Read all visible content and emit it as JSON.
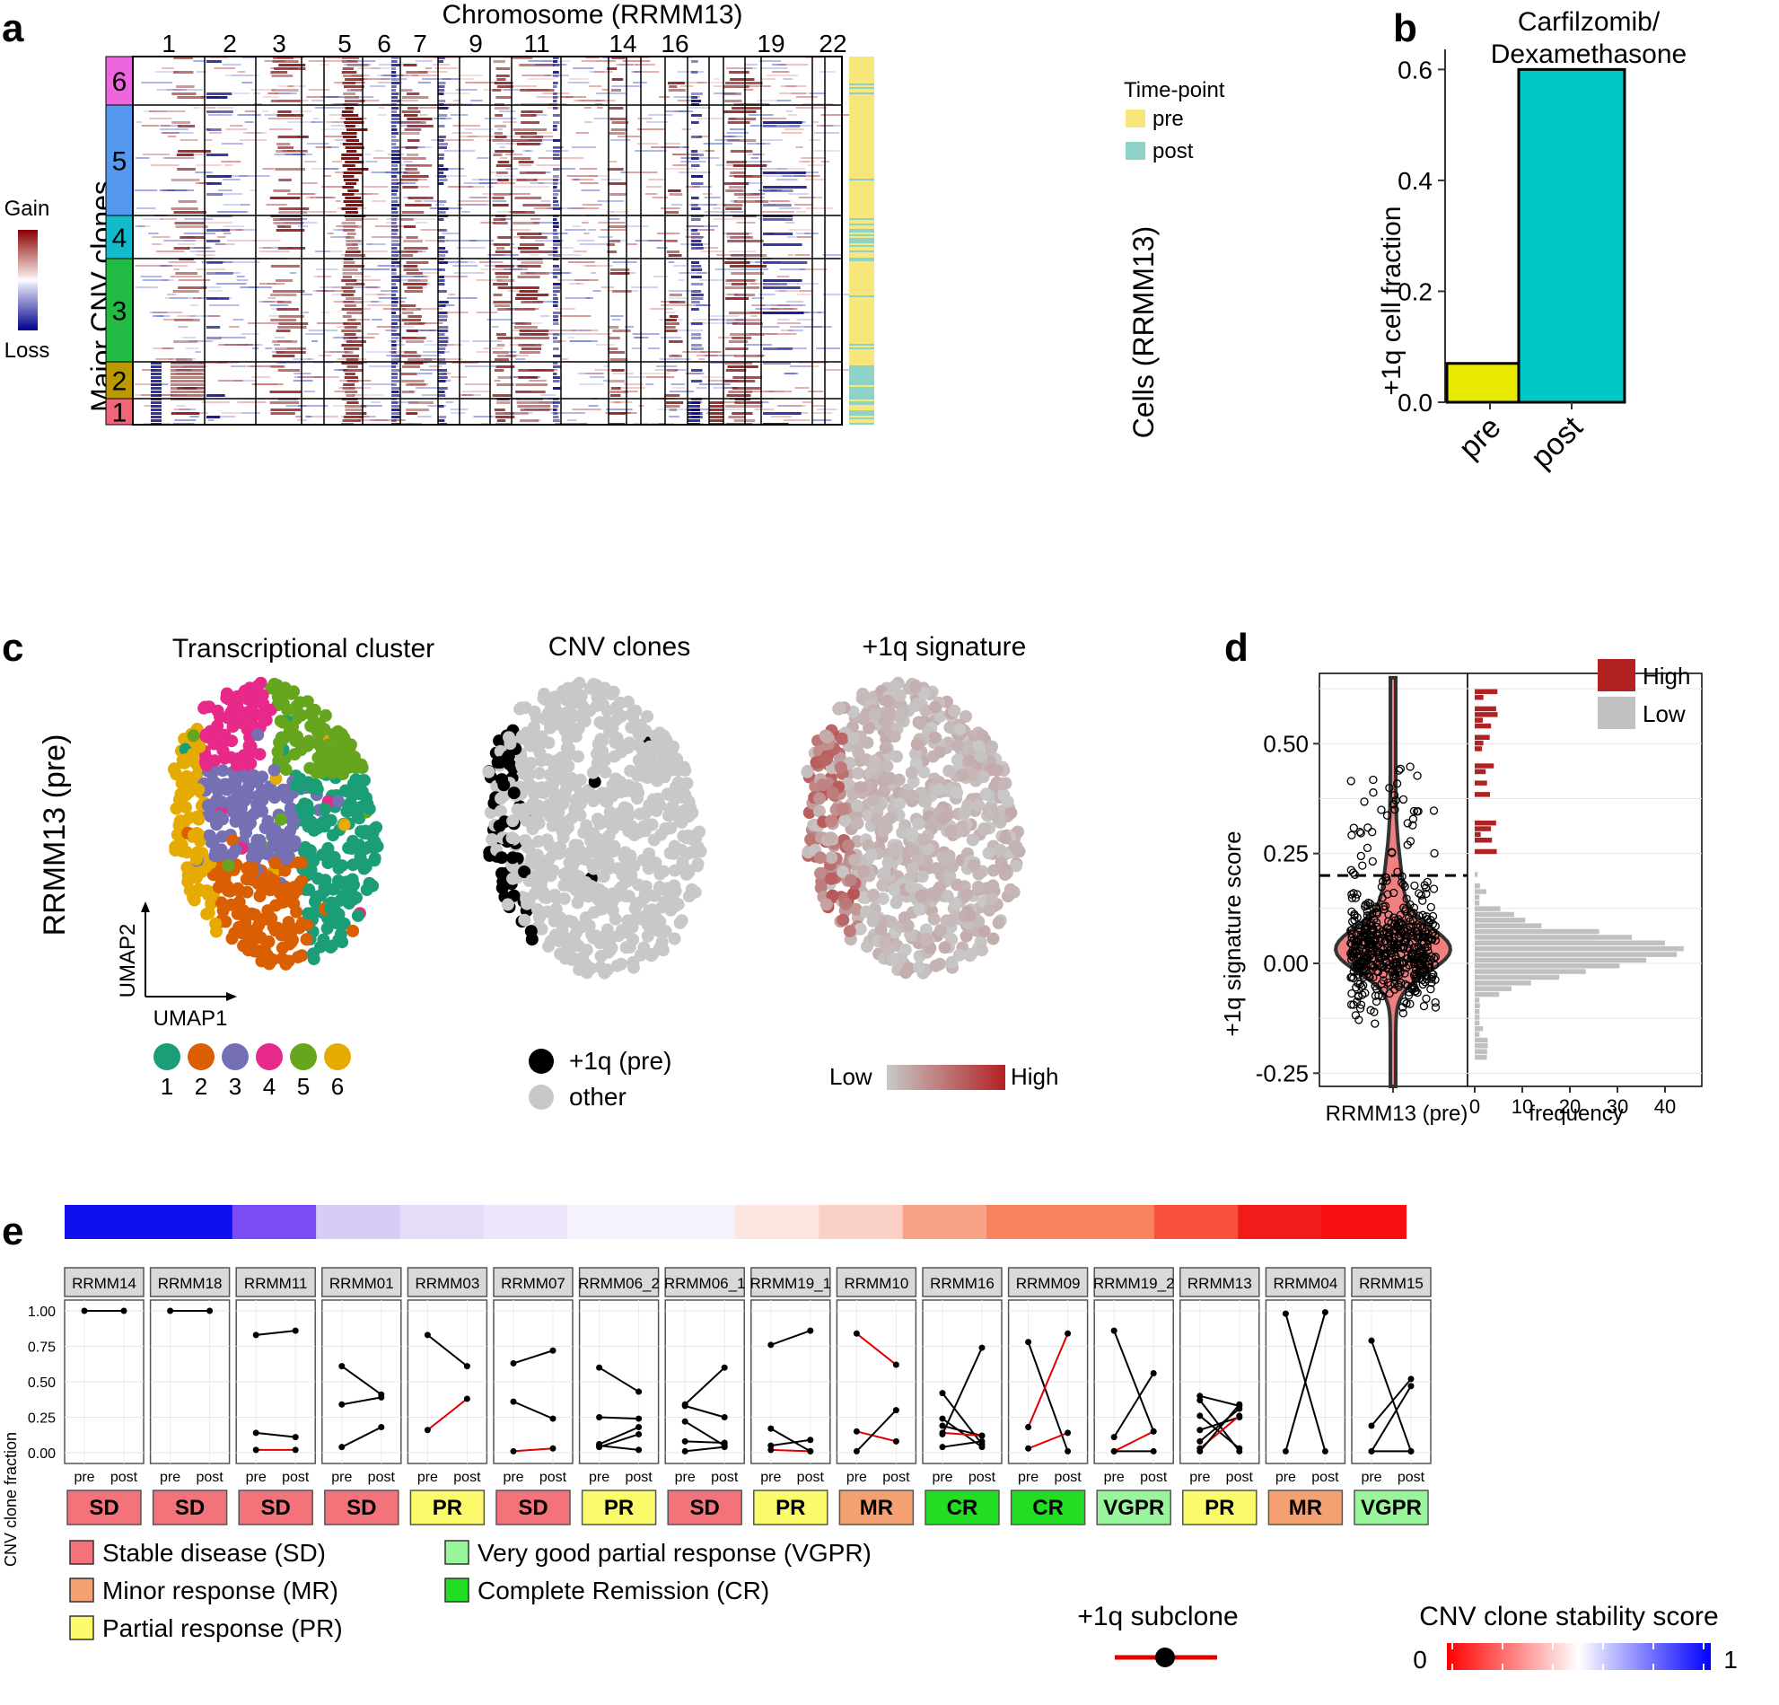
{
  "panel_labels": [
    "a",
    "b",
    "c",
    "d",
    "e"
  ],
  "panel_a": {
    "title": "Chromosome (RRMM13)",
    "chromosome_ticks": [
      "1",
      "2",
      "3",
      "5",
      "6",
      "7",
      "9",
      "11",
      "14",
      "16",
      "19",
      "22"
    ],
    "clone_axis_label": "Major CNV clones",
    "clones": [
      "6",
      "5",
      "4",
      "3",
      "2",
      "1"
    ],
    "colorbar_labels": {
      "top": "Gain",
      "bottom": "Loss"
    },
    "timepoint_legend_title": "Time-point",
    "timepoint_items": [
      {
        "label": "pre",
        "color": "#f7e67a"
      },
      {
        "label": "post",
        "color": "#8fd3c8"
      }
    ],
    "cells_label": "Cells (RRMM13)",
    "colors": {
      "gain": "#8b0000",
      "loss": "#00008b"
    }
  },
  "chart_data": [
    {
      "type": "bar",
      "title": "Carfilzomib/ Dexamethasone",
      "title_lines": [
        "Carfilzomib/",
        "Dexamethasone"
      ],
      "categories": [
        "pre",
        "post"
      ],
      "values": [
        0.07,
        0.6
      ],
      "colors": [
        "#e8e800",
        "#00c8c8"
      ],
      "ylabel": "+1q cell fraction",
      "yticks": [
        "0.0",
        "0.2",
        "0.4",
        "0.6"
      ],
      "ylim": [
        0,
        0.62
      ]
    },
    {
      "type": "scatter",
      "panel": "c",
      "titles": [
        "Transcriptional cluster",
        "CNV clones",
        "+1q signature"
      ],
      "row_label": "RRMM13 (pre)",
      "axis_labels": {
        "x": "UMAP1",
        "y": "UMAP2"
      },
      "cluster_legend": [
        {
          "label": "1",
          "color": "#1b9e77"
        },
        {
          "label": "2",
          "color": "#d95f02"
        },
        {
          "label": "3",
          "color": "#7570b3"
        },
        {
          "label": "4",
          "color": "#e7298a"
        },
        {
          "label": "5",
          "color": "#66a61e"
        },
        {
          "label": "6",
          "color": "#e6ab02"
        }
      ],
      "cnv_legend": [
        {
          "label": "+1q (pre)",
          "color": "#000000"
        },
        {
          "label": "other",
          "color": "#c8c8c8"
        }
      ],
      "signature_legend": {
        "low": "Low",
        "high": "High",
        "low_color": "#c8c8c8",
        "high_color": "#b22222"
      }
    },
    {
      "type": "violin",
      "panel": "d",
      "ylabel": "+1q signature score",
      "xlabel": "RRMM13 (pre)",
      "yticks": [
        "0.50",
        "0.25",
        "0.00",
        "-0.25"
      ],
      "ylim": [
        -0.28,
        0.66
      ],
      "threshold": 0.2,
      "histogram_xlabel": "frequency",
      "histogram_xticks": [
        "0",
        "10",
        "20",
        "30",
        "40"
      ],
      "legend": [
        {
          "label": "High",
          "color": "#b22222"
        },
        {
          "label": "Low",
          "color": "#c0c0c0"
        }
      ]
    },
    {
      "type": "line",
      "panel": "e",
      "ylabel": "CNV clone fraction",
      "yticks": [
        "1.00",
        "0.75",
        "0.50",
        "0.25",
        "0.00"
      ],
      "x": [
        "pre",
        "post"
      ],
      "ylim": [
        0,
        1
      ],
      "stability_colors": [
        "#1010ee",
        "#1010ee",
        "#7a4cf2",
        "#d8ccf6",
        "#e6dcf8",
        "#ede6fa",
        "#f6f2fc",
        "#f6f2fc",
        "#fde6e0",
        "#fbd0c4",
        "#f9a288",
        "#f8825f",
        "#f8825f",
        "#f9523c",
        "#f01c1c",
        "#f81010"
      ],
      "samples": [
        {
          "name": "RRMM14",
          "response": "SD",
          "lines": [
            [
              1.0,
              1.0,
              0
            ]
          ]
        },
        {
          "name": "RRMM18",
          "response": "SD",
          "lines": [
            [
              1.0,
              1.0,
              0
            ]
          ]
        },
        {
          "name": "RRMM11",
          "response": "SD",
          "lines": [
            [
              0.83,
              0.86,
              0
            ],
            [
              0.14,
              0.11,
              0
            ],
            [
              0.02,
              0.02,
              1
            ]
          ]
        },
        {
          "name": "RRMM01",
          "response": "SD",
          "lines": [
            [
              0.61,
              0.41,
              0
            ],
            [
              0.34,
              0.39,
              0
            ],
            [
              0.04,
              0.18,
              0
            ]
          ]
        },
        {
          "name": "RRMM03",
          "response": "PR",
          "lines": [
            [
              0.83,
              0.61,
              0
            ],
            [
              0.16,
              0.38,
              1
            ]
          ]
        },
        {
          "name": "RRMM07",
          "response": "SD",
          "lines": [
            [
              0.63,
              0.72,
              0
            ],
            [
              0.36,
              0.24,
              0
            ],
            [
              0.01,
              0.03,
              1
            ]
          ]
        },
        {
          "name": "RRMM06_2",
          "response": "PR",
          "lines": [
            [
              0.6,
              0.43,
              0
            ],
            [
              0.25,
              0.24,
              0
            ],
            [
              0.06,
              0.18,
              0
            ],
            [
              0.04,
              0.13,
              0
            ],
            [
              0.05,
              0.02,
              0
            ]
          ]
        },
        {
          "name": "RRMM06_1",
          "response": "SD",
          "lines": [
            [
              0.34,
              0.6,
              0
            ],
            [
              0.33,
              0.25,
              0
            ],
            [
              0.22,
              0.05,
              0
            ],
            [
              0.08,
              0.07,
              0
            ],
            [
              0.01,
              0.04,
              0
            ]
          ]
        },
        {
          "name": "RRMM19_1",
          "response": "PR",
          "lines": [
            [
              0.76,
              0.86,
              0
            ],
            [
              0.17,
              0.01,
              0
            ],
            [
              0.05,
              0.09,
              0
            ],
            [
              0.02,
              0.01,
              1
            ]
          ]
        },
        {
          "name": "RRMM10",
          "response": "MR",
          "lines": [
            [
              0.84,
              0.62,
              1
            ],
            [
              0.15,
              0.08,
              1
            ],
            [
              0.01,
              0.3,
              0
            ]
          ]
        },
        {
          "name": "RRMM16",
          "response": "CR",
          "lines": [
            [
              0.42,
              0.06,
              0
            ],
            [
              0.24,
              0.04,
              0
            ],
            [
              0.19,
              0.12,
              0
            ],
            [
              0.14,
              0.12,
              1
            ],
            [
              0.13,
              0.74,
              0
            ],
            [
              0.04,
              0.08,
              0
            ]
          ]
        },
        {
          "name": "RRMM09",
          "response": "CR",
          "lines": [
            [
              0.78,
              0.01,
              0
            ],
            [
              0.18,
              0.84,
              1
            ],
            [
              0.03,
              0.14,
              1
            ]
          ]
        },
        {
          "name": "RRMM19_2",
          "response": "VGPR",
          "lines": [
            [
              0.86,
              0.15,
              0
            ],
            [
              0.11,
              0.56,
              0
            ],
            [
              0.01,
              0.15,
              1
            ],
            [
              0.01,
              0.01,
              0
            ]
          ]
        },
        {
          "name": "RRMM13",
          "response": "PR",
          "lines": [
            [
              0.4,
              0.33,
              0
            ],
            [
              0.37,
              0.01,
              0
            ],
            [
              0.26,
              0.03,
              0
            ],
            [
              0.16,
              0.25,
              0
            ],
            [
              0.08,
              0.31,
              0
            ],
            [
              0.03,
              0.26,
              1
            ],
            [
              0.01,
              0.34,
              0
            ]
          ]
        },
        {
          "name": "RRMM04",
          "response": "MR",
          "lines": [
            [
              0.98,
              0.01,
              0
            ],
            [
              0.01,
              0.99,
              0
            ]
          ]
        },
        {
          "name": "RRMM15",
          "response": "VGPR",
          "lines": [
            [
              0.79,
              0.01,
              0
            ],
            [
              0.19,
              0.52,
              0
            ],
            [
              0.01,
              0.47,
              0
            ],
            [
              0.01,
              0.01,
              0
            ]
          ]
        }
      ],
      "response_colors": {
        "SD": "#f4737a",
        "PR": "#fafa6a",
        "MR": "#f4a070",
        "CR": "#22dd22",
        "VGPR": "#99f599"
      },
      "response_legend": [
        {
          "code": "SD",
          "label": "Stable disease (SD)"
        },
        {
          "code": "MR",
          "label": "Minor response (MR)"
        },
        {
          "code": "PR",
          "label": "Partial response (PR)"
        },
        {
          "code": "VGPR",
          "label": "Very good partial response (VGPR)"
        },
        {
          "code": "CR",
          "label": "Complete Remission (CR)"
        }
      ],
      "subclone_legend_label": "+1q subclone",
      "stability_legend": {
        "title": "CNV clone stability score",
        "min": "0",
        "max": "1"
      }
    }
  ]
}
